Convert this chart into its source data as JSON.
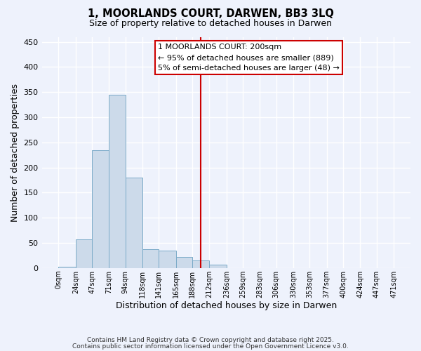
{
  "title": "1, MOORLANDS COURT, DARWEN, BB3 3LQ",
  "subtitle": "Size of property relative to detached houses in Darwen",
  "xlabel": "Distribution of detached houses by size in Darwen",
  "ylabel": "Number of detached properties",
  "bin_edges": [
    0,
    24,
    47,
    71,
    94,
    118,
    141,
    165,
    188,
    212,
    236,
    259,
    283,
    306,
    330,
    353,
    377,
    400,
    424,
    447,
    471
  ],
  "bar_heights": [
    2,
    57,
    235,
    345,
    180,
    38,
    35,
    22,
    15,
    6,
    0,
    0,
    0,
    0,
    0,
    0,
    0,
    0,
    0,
    0
  ],
  "bar_color": "#ccdaea",
  "bar_edge_color": "#7aaac8",
  "vline_x": 200,
  "vline_color": "#cc0000",
  "annotation_title": "1 MOORLANDS COURT: 200sqm",
  "annotation_line1": "← 95% of detached houses are smaller (889)",
  "annotation_line2": "5% of semi-detached houses are larger (48) →",
  "annotation_box_edgecolor": "#cc0000",
  "annotation_box_facecolor": "#ffffff",
  "ylim": [
    0,
    460
  ],
  "yticks": [
    0,
    50,
    100,
    150,
    200,
    250,
    300,
    350,
    400,
    450
  ],
  "background_color": "#eef2fc",
  "grid_color": "#ffffff",
  "footer1": "Contains HM Land Registry data © Crown copyright and database right 2025.",
  "footer2": "Contains public sector information licensed under the Open Government Licence v3.0."
}
